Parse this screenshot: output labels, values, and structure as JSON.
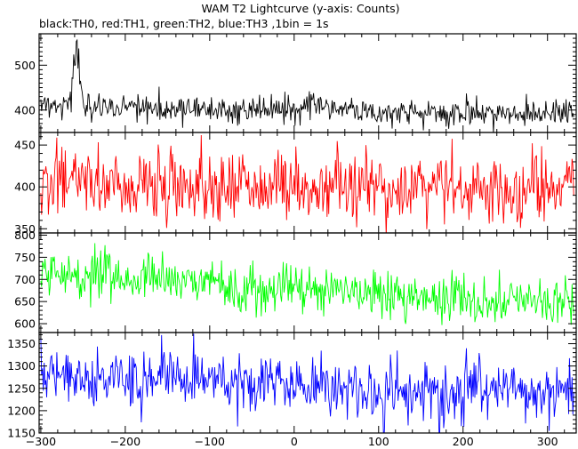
{
  "chart_data": {
    "type": "line",
    "title": "WAM T2 Lightcurve (y-axis: Counts)",
    "subtitle": "black:TH0, red:TH1, green:TH2, blue:TH3 ,1bin = 1s",
    "xlabel": "",
    "ylabel": "",
    "xlim": [
      -302,
      334
    ],
    "x_ticks": [
      -300,
      -200,
      -100,
      0,
      100,
      200,
      300
    ],
    "x_tick_labels": [
      "−300",
      "−200",
      "−100",
      "0",
      "100",
      "200",
      "300"
    ],
    "grid": false,
    "panels": [
      {
        "name": "TH0",
        "color": "#000000",
        "ylim": [
          350,
          570
        ],
        "y_ticks": [
          400,
          500
        ],
        "y_tick_labels": [
          "400",
          "500"
        ],
        "baseline": [
          [
            -295,
            410
          ],
          [
            -200,
            405
          ],
          [
            -100,
            402
          ],
          [
            0,
            403
          ],
          [
            100,
            398
          ],
          [
            200,
            393
          ],
          [
            330,
            392
          ]
        ],
        "noise": 15,
        "features": [
          {
            "center": -258,
            "width": 3.5,
            "amplitude": 120
          },
          {
            "center": 25,
            "width": 8,
            "amplitude": 20
          }
        ]
      },
      {
        "name": "TH1",
        "color": "#ff0000",
        "ylim": [
          345,
          465
        ],
        "y_ticks": [
          350,
          400,
          450
        ],
        "y_tick_labels": [
          "350",
          "400",
          "450"
        ],
        "baseline": [
          [
            -295,
            406
          ],
          [
            -200,
            404
          ],
          [
            -100,
            402
          ],
          [
            0,
            401
          ],
          [
            100,
            400
          ],
          [
            200,
            398
          ],
          [
            330,
            397
          ]
        ],
        "noise": 21,
        "features": []
      },
      {
        "name": "TH2",
        "color": "#00ff00",
        "ylim": [
          580,
          805
        ],
        "y_ticks": [
          600,
          650,
          700,
          750,
          800
        ],
        "y_tick_labels": [
          "600",
          "650",
          "700",
          "750",
          "800"
        ],
        "baseline": [
          [
            -295,
            713
          ],
          [
            -200,
            702
          ],
          [
            -100,
            690
          ],
          [
            0,
            680
          ],
          [
            100,
            667
          ],
          [
            200,
            657
          ],
          [
            330,
            648
          ]
        ],
        "noise": 26,
        "features": []
      },
      {
        "name": "TH3",
        "color": "#0000ff",
        "ylim": [
          1150,
          1375
        ],
        "y_ticks": [
          1150,
          1200,
          1250,
          1300,
          1350
        ],
        "y_tick_labels": [
          "1150",
          "1200",
          "1250",
          "1300",
          "1350"
        ],
        "baseline": [
          [
            -295,
            1280
          ],
          [
            -200,
            1272
          ],
          [
            -100,
            1265
          ],
          [
            0,
            1258
          ],
          [
            100,
            1250
          ],
          [
            200,
            1242
          ],
          [
            330,
            1238
          ]
        ],
        "noise": 32,
        "features": []
      }
    ]
  }
}
